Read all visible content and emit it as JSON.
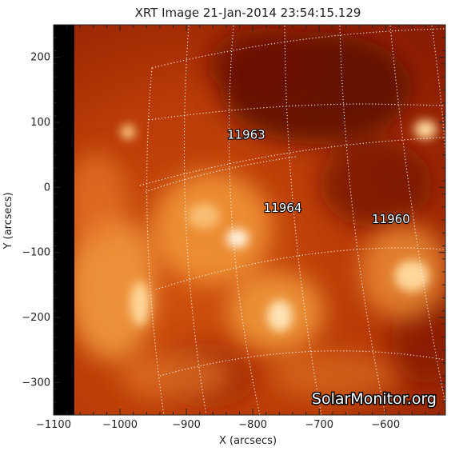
{
  "chart_data": {
    "type": "heatmap",
    "title": "XRT Image 21-Jan-2014 23:54:15.129",
    "xlabel": "X (arcsecs)",
    "ylabel": "Y (arcsecs)",
    "xlim": [
      -1100,
      -510
    ],
    "ylim": [
      -350,
      250
    ],
    "x_ticks": [
      -1100,
      -1000,
      -900,
      -800,
      -700,
      -600
    ],
    "y_ticks": [
      -300,
      -200,
      -100,
      0,
      100,
      200
    ],
    "x_tick_labels": [
      "−1100",
      "−1000",
      "−900",
      "−800",
      "−700",
      "−600"
    ],
    "y_tick_labels": [
      "−300",
      "−200",
      "−100",
      "0",
      "100",
      "200"
    ],
    "colormap": [
      "#3a0200",
      "#7a1200",
      "#b83a06",
      "#dd6414",
      "#f4a040",
      "#ffd79a",
      "#fff2dc"
    ],
    "annotations": [
      {
        "text": "11963",
        "x": -810,
        "y": 75
      },
      {
        "text": "11964",
        "x": -755,
        "y": -38
      },
      {
        "text": "11960",
        "x": -592,
        "y": -55
      }
    ],
    "watermark": "SolarMonitor.org",
    "grid": "heliographic",
    "off_disk_color": "#000000"
  }
}
